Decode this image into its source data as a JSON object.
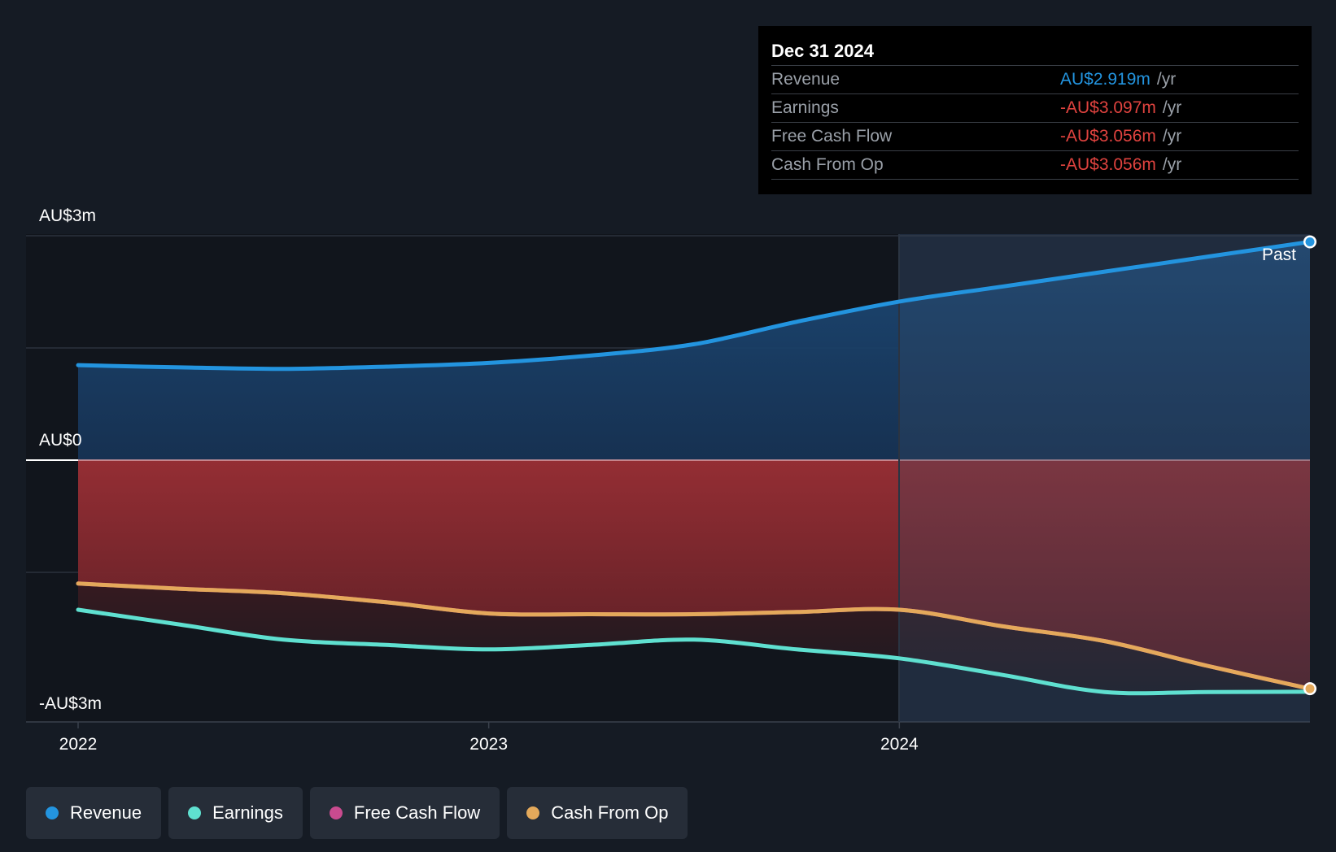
{
  "chart_data": {
    "type": "area",
    "currency_labels": {
      "top": "AU$3m",
      "zero": "AU$0",
      "bottom": "-AU$3m"
    },
    "ylim": [
      -3.5,
      3.0
    ],
    "x_ticks": [
      "2022",
      "2023",
      "2024"
    ],
    "past_label": "Past",
    "grid": true,
    "series": [
      {
        "name": "Revenue",
        "color": "#2394df",
        "points": [
          [
            2022.0,
            1.27
          ],
          [
            2022.25,
            1.24
          ],
          [
            2022.5,
            1.22
          ],
          [
            2022.75,
            1.25
          ],
          [
            2023.0,
            1.3
          ],
          [
            2023.25,
            1.4
          ],
          [
            2023.5,
            1.55
          ],
          [
            2023.75,
            1.85
          ],
          [
            2024.0,
            2.12
          ],
          [
            2024.25,
            2.32
          ],
          [
            2024.5,
            2.52
          ],
          [
            2024.75,
            2.72
          ],
          [
            2025.0,
            2.919
          ]
        ]
      },
      {
        "name": "Earnings",
        "color": "#5fe0d0",
        "points": [
          [
            2022.0,
            -2.0
          ],
          [
            2022.25,
            -2.2
          ],
          [
            2022.5,
            -2.4
          ],
          [
            2022.75,
            -2.47
          ],
          [
            2023.0,
            -2.53
          ],
          [
            2023.25,
            -2.47
          ],
          [
            2023.5,
            -2.4
          ],
          [
            2023.75,
            -2.53
          ],
          [
            2024.0,
            -2.65
          ],
          [
            2024.25,
            -2.87
          ],
          [
            2024.5,
            -3.1
          ],
          [
            2024.75,
            -3.1
          ],
          [
            2025.0,
            -3.097
          ]
        ]
      },
      {
        "name": "Free Cash Flow",
        "color": "#c94b8f",
        "points": [
          [
            2022.0,
            -1.65
          ],
          [
            2022.25,
            -1.72
          ],
          [
            2022.5,
            -1.78
          ],
          [
            2022.75,
            -1.9
          ],
          [
            2023.0,
            -2.05
          ],
          [
            2023.25,
            -2.06
          ],
          [
            2023.5,
            -2.06
          ],
          [
            2023.75,
            -2.03
          ],
          [
            2024.0,
            -2.0
          ],
          [
            2024.25,
            -2.22
          ],
          [
            2024.5,
            -2.42
          ],
          [
            2024.75,
            -2.75
          ],
          [
            2025.0,
            -3.056
          ]
        ]
      },
      {
        "name": "Cash From Op",
        "color": "#e4a95b",
        "points": [
          [
            2022.0,
            -1.65
          ],
          [
            2022.25,
            -1.72
          ],
          [
            2022.5,
            -1.78
          ],
          [
            2022.75,
            -1.9
          ],
          [
            2023.0,
            -2.05
          ],
          [
            2023.25,
            -2.06
          ],
          [
            2023.5,
            -2.06
          ],
          [
            2023.75,
            -2.03
          ],
          [
            2024.0,
            -2.0
          ],
          [
            2024.25,
            -2.22
          ],
          [
            2024.5,
            -2.42
          ],
          [
            2024.75,
            -2.75
          ],
          [
            2025.0,
            -3.056
          ]
        ]
      }
    ]
  },
  "tooltip": {
    "date": "Dec 31 2024",
    "rows": [
      {
        "label": "Revenue",
        "value": "AU$2.919m",
        "unit": "/yr",
        "color": "#2394df"
      },
      {
        "label": "Earnings",
        "value": "-AU$3.097m",
        "unit": "/yr",
        "color": "#e0433f"
      },
      {
        "label": "Free Cash Flow",
        "value": "-AU$3.056m",
        "unit": "/yr",
        "color": "#e0433f"
      },
      {
        "label": "Cash From Op",
        "value": "-AU$3.056m",
        "unit": "/yr",
        "color": "#e0433f"
      }
    ]
  },
  "legend": [
    {
      "label": "Revenue",
      "color": "#2394df"
    },
    {
      "label": "Earnings",
      "color": "#5fe0d0"
    },
    {
      "label": "Free Cash Flow",
      "color": "#c94b8f"
    },
    {
      "label": "Cash From Op",
      "color": "#e4a95b"
    }
  ]
}
